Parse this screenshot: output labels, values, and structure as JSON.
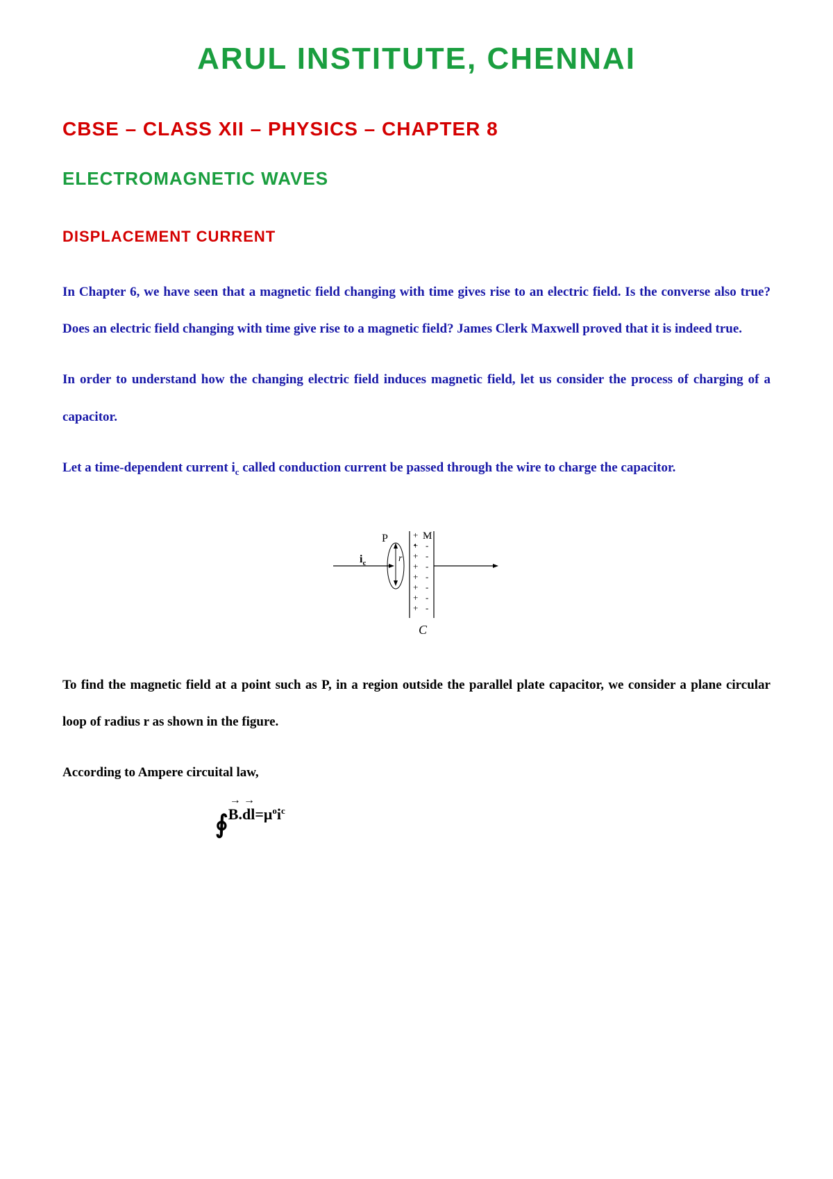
{
  "colors": {
    "green": "#1a9e3f",
    "red": "#d40000",
    "blue": "#1818a8",
    "black": "#000000"
  },
  "institute": {
    "title": "ARUL INSTITUTE, CHENNAI",
    "color": "#1a9e3f"
  },
  "chapter": {
    "text": "CBSE – CLASS XII – PHYSICS – CHAPTER 8",
    "color": "#d40000"
  },
  "topic": {
    "text": "ELECTROMAGNETIC WAVES",
    "color": "#1a9e3f"
  },
  "section": {
    "text": "DISPLACEMENT CURRENT",
    "color": "#d40000"
  },
  "paragraphs": {
    "p1": {
      "text": "In Chapter 6, we have seen that a magnetic field changing with time gives rise to an electric field. Is the converse also true? Does an electric field changing with time give rise to a magnetic field? James Clerk Maxwell proved that it is indeed true.",
      "color": "#1818a8"
    },
    "p2": {
      "text": "In order to understand how the changing electric field induces magnetic field, let us consider the process of charging of a capacitor.",
      "color": "#1818a8"
    },
    "p3_pre": "Let a time-dependent current i",
    "p3_sub": "c",
    "p3_post": " called conduction current be passed through the wire to charge the capacitor.",
    "p3_color": "#1818a8",
    "p4": {
      "text": "To find the magnetic field at a point such as P, in a region outside the parallel plate capacitor, we consider a plane circular loop of radius r as shown in the figure.",
      "color": "#000000"
    },
    "p5": {
      "text": "According to Ampere circuital law,",
      "color": "#000000"
    }
  },
  "diagram": {
    "labels": {
      "ic": "i",
      "ic_sub": "c",
      "P": "P",
      "M": "M",
      "r": "r",
      "C": "C"
    },
    "stroke_color": "#000000",
    "charges_plus": "+",
    "charges_minus": "-"
  },
  "equation": {
    "integral": "∮",
    "B": "B",
    "dot": ".",
    "dl": "dl",
    "equals": " = ",
    "mu": "μ",
    "mu_sub": "o",
    "space": " ",
    "i": "i",
    "i_sub": "c"
  }
}
